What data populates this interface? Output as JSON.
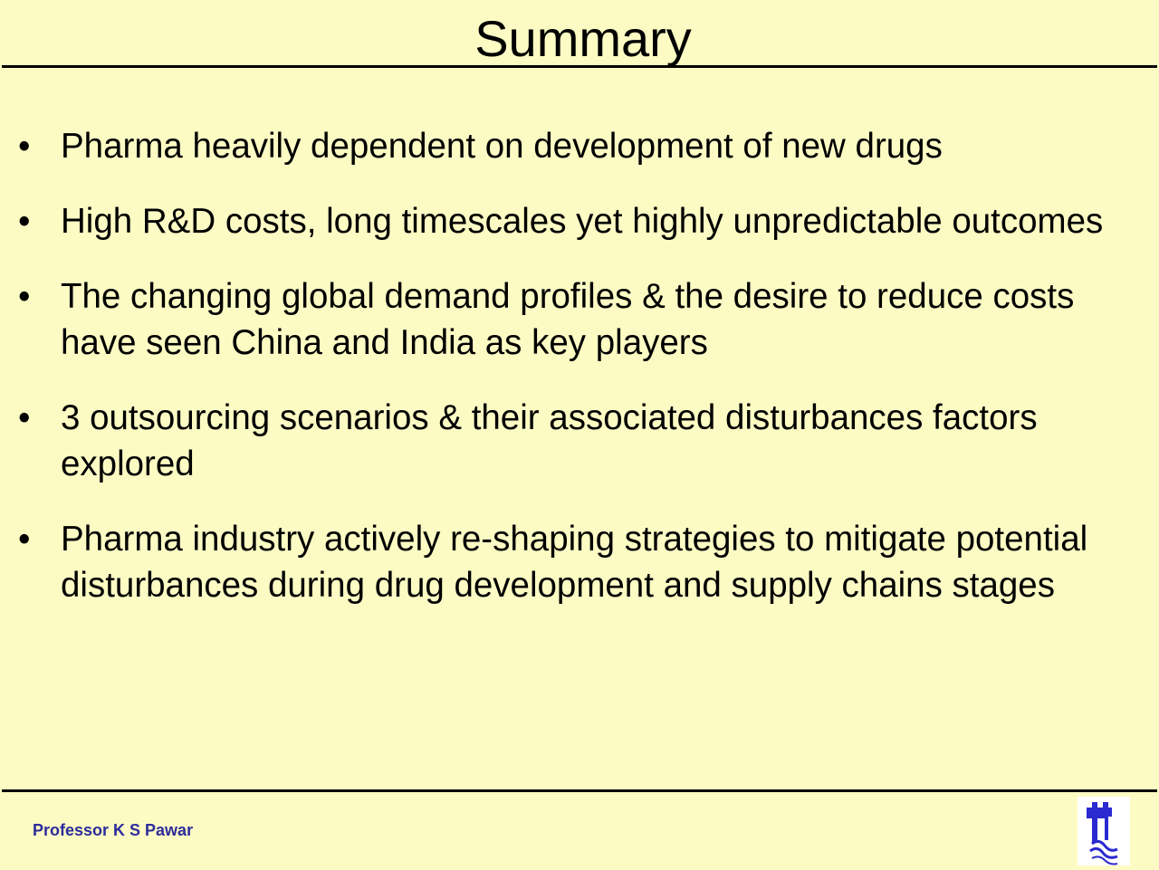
{
  "slide": {
    "title": "Summary",
    "bullets": [
      "Pharma heavily dependent on development of new drugs",
      "High R&D costs, long timescales yet highly unpredictable outcomes",
      "The changing global demand profiles & the desire to reduce costs have seen China and India as key players",
      "3 outsourcing scenarios & their associated disturbances factors explored",
      "Pharma industry actively re-shaping strategies to mitigate potential disturbances during drug development and supply chains stages"
    ],
    "bullet_glyph": "•",
    "footer": "Professor K S Pawar",
    "logo_icon": "castle-tower-waves-logo"
  },
  "colors": {
    "background": "#fdfbc4",
    "footer_text": "#2c2c9c",
    "logo": "#2a2ad0"
  }
}
